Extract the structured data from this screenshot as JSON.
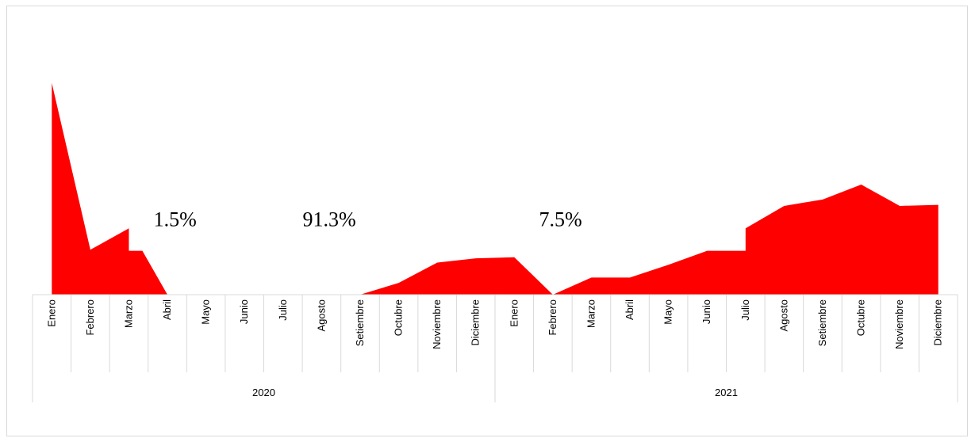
{
  "chart_data": {
    "type": "area",
    "color": "#ff0000",
    "gridline_color": "#d9d9d9",
    "title": "",
    "xlabel": "",
    "ylabel": "",
    "ylim": [
      0,
      100
    ],
    "grid": false,
    "legend": "none",
    "groups": [
      {
        "name": "2020",
        "categories": [
          "Enero",
          "Febrero",
          "Marzo",
          "Abril",
          "Mayo",
          "Junio",
          "Julio",
          "Agosto",
          "Setiembre",
          "Octubre",
          "Noviembre",
          "Diciembre"
        ]
      },
      {
        "name": "2021",
        "categories": [
          "Enero",
          "Febrero",
          "Marzo",
          "Abril",
          "Mayo",
          "Junio",
          "Julio",
          "Agosto",
          "Setiembre",
          "Octubre",
          "Noviembre",
          "Diciembre"
        ]
      }
    ],
    "series": [
      {
        "points": [
          {
            "x": 0,
            "y": 99
          },
          {
            "x": 1,
            "y": 21
          },
          {
            "x": 2,
            "y": 31
          },
          {
            "x": 2,
            "y": 20.5
          },
          {
            "x": 2.35,
            "y": 20.5
          },
          {
            "x": 3,
            "y": 0
          },
          {
            "x": 4,
            "y": 0
          },
          {
            "x": 5,
            "y": 0
          },
          {
            "x": 6,
            "y": 0
          },
          {
            "x": 7,
            "y": 0
          },
          {
            "x": 8,
            "y": 0
          },
          {
            "x": 9,
            "y": 5.5
          },
          {
            "x": 10,
            "y": 15
          },
          {
            "x": 11,
            "y": 17
          },
          {
            "x": 12,
            "y": 17.5
          },
          {
            "x": 13,
            "y": 0
          },
          {
            "x": 14,
            "y": 8
          },
          {
            "x": 15,
            "y": 8
          },
          {
            "x": 16,
            "y": 14
          },
          {
            "x": 17,
            "y": 20.5
          },
          {
            "x": 18,
            "y": 20.5
          },
          {
            "x": 18,
            "y": 31
          },
          {
            "x": 19,
            "y": 41.5
          },
          {
            "x": 20,
            "y": 44.5
          },
          {
            "x": 21,
            "y": 51.5
          },
          {
            "x": 22,
            "y": 41.5
          },
          {
            "x": 23,
            "y": 42
          }
        ]
      }
    ],
    "annotations": [
      {
        "text": "1.5%",
        "x": 3.2,
        "y": 32
      },
      {
        "text": "91.3%",
        "x": 7.2,
        "y": 32
      },
      {
        "text": "7.5%",
        "x": 13.2,
        "y": 32
      }
    ]
  }
}
